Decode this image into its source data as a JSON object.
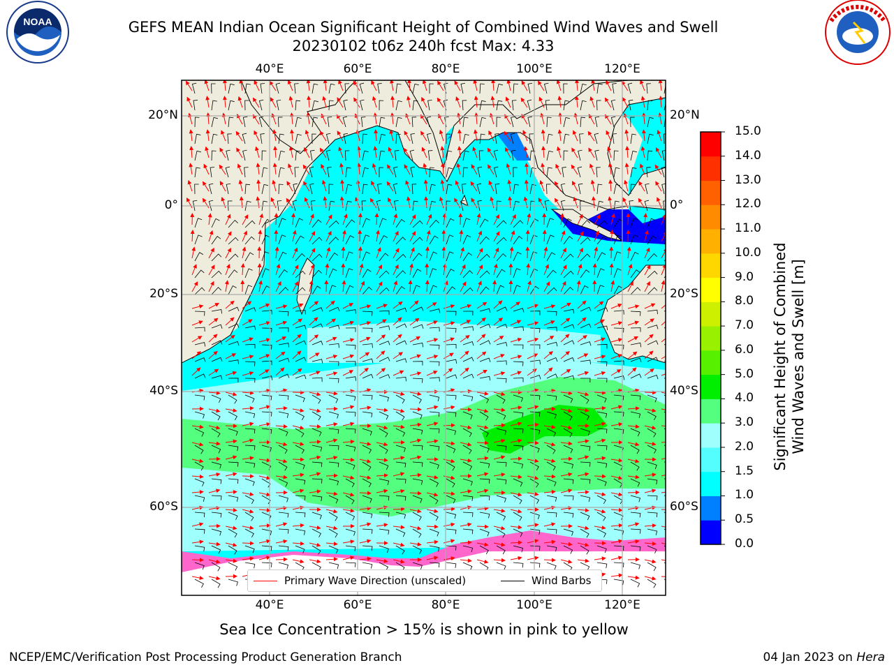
{
  "title": {
    "line1": "GEFS MEAN Indian Ocean Significant Height of Combined Wind Waves and Swell",
    "line2": "20230102 t06z 240h fcst   Max: 4.33"
  },
  "logos": {
    "left": {
      "icon": "noaa-logo",
      "text": "NOAA"
    },
    "right": {
      "icon": "nws-logo",
      "text": "NATIONAL WEATHER SERVICE"
    }
  },
  "map": {
    "lon_ticks": [
      "40°E",
      "60°E",
      "80°E",
      "100°E",
      "120°E"
    ],
    "lat_ticks_left": [
      "20°N",
      "0°",
      "20°S",
      "40°S",
      "60°S"
    ],
    "lat_ticks_right": [
      "20°N",
      "0°",
      "20°S",
      "40°S",
      "60°S"
    ],
    "colors": {
      "land": "#eeecdc",
      "ocean_low": "#00ffff",
      "ocean_mid": "#9ffffd",
      "ocean_high": "#54fe7e",
      "ocean_peak": "#00ee00",
      "arrow": "#ff0000",
      "barb": "#000000"
    }
  },
  "legend": {
    "wave_label": "Primary Wave Direction (unscaled)",
    "barb_label": "Wind Barbs"
  },
  "colorbar": {
    "title_line1": "Significant Height of Combined",
    "title_line2": "Wind Waves and Swell [m]",
    "ticks": [
      "15.0",
      "14.0",
      "13.0",
      "12.0",
      "11.0",
      "10.0",
      "9.0",
      "8.0",
      "7.0",
      "6.0",
      "5.0",
      "4.0",
      "3.0",
      "2.0",
      "1.5",
      "1.0",
      "0.5",
      "0.0"
    ],
    "colors": [
      "#0000ff",
      "#0080ff",
      "#00ffff",
      "#55fefe",
      "#9ffffd",
      "#54fe7e",
      "#00ee00",
      "#57f000",
      "#99f000",
      "#ccf000",
      "#ffff00",
      "#ffd700",
      "#ffb000",
      "#ff8c00",
      "#ff6000",
      "#ff3000",
      "#ff0000"
    ]
  },
  "ice_note": "Sea Ice Concentration > 15% is shown in pink to yellow",
  "footer": {
    "left": "NCEP/EMC/Verification Post Processing Product Generation Branch",
    "right_prefix": "04 Jan 2023 on ",
    "right_host": "Hera"
  }
}
